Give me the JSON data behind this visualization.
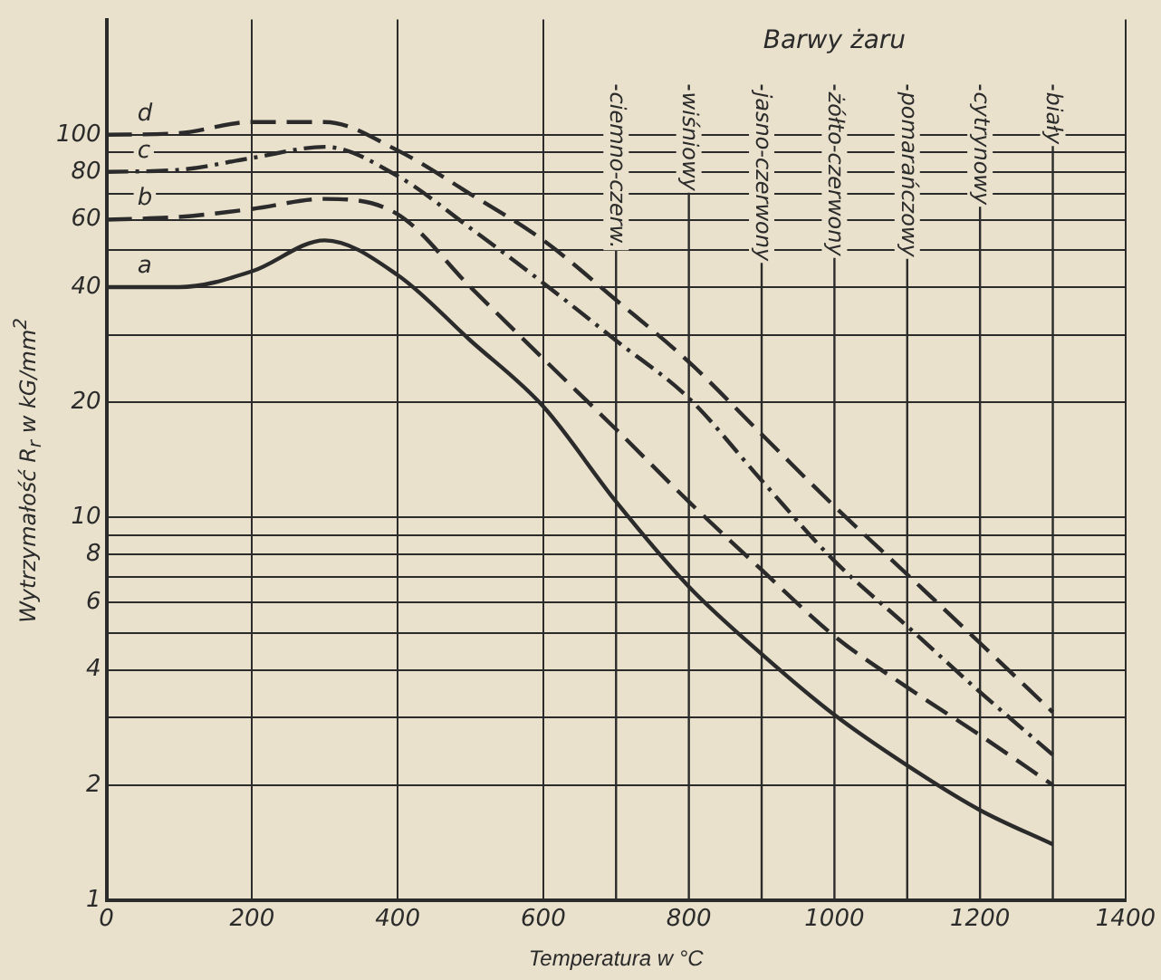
{
  "chart_data": {
    "type": "line",
    "xlabel": "Temperatura w °C",
    "ylabel": "Wytrzymałość R$_{r}$ w kG/mm$^{2}$",
    "x": [
      0,
      100,
      200,
      300,
      400,
      500,
      600,
      700,
      800,
      900,
      1000,
      1100,
      1200,
      1300
    ],
    "series": [
      {
        "name": "a",
        "color": "#2b2b2b",
        "line_style": "solid",
        "values": [
          40,
          40,
          44,
          53,
          43,
          29,
          19.5,
          11,
          6.6,
          4.4,
          3.05,
          2.25,
          1.72,
          1.4
        ]
      },
      {
        "name": "b",
        "color": "#2b2b2b",
        "line_style": "dashed",
        "values": [
          60,
          61,
          64,
          68,
          62,
          40,
          26,
          17,
          11,
          7.3,
          4.9,
          3.6,
          2.7,
          2.0
        ]
      },
      {
        "name": "c",
        "color": "#2b2b2b",
        "line_style": "dashdot",
        "values": [
          80,
          81,
          87,
          93,
          78,
          57,
          41,
          29,
          20.5,
          12.5,
          7.7,
          5.2,
          3.5,
          2.4
        ]
      },
      {
        "name": "d",
        "color": "#2b2b2b",
        "line_style": "dashed",
        "values": [
          100,
          101,
          108,
          108,
          91,
          70,
          53,
          37,
          25.5,
          16.5,
          10.7,
          7.1,
          4.7,
          3.1
        ]
      }
    ],
    "xlim": [
      0,
      1400
    ],
    "xticks": [
      0,
      200,
      400,
      600,
      800,
      1000,
      1200,
      1400
    ],
    "ylim": [
      1,
      200
    ],
    "yticks": [
      1,
      2,
      {
        "value": 3,
        "label": null
      },
      4,
      {
        "value": 5,
        "label": null
      },
      6,
      {
        "value": 7,
        "label": null
      },
      8,
      {
        "value": 9,
        "label": null
      },
      10,
      20,
      {
        "value": 30,
        "label": null
      },
      40,
      {
        "value": 50,
        "label": null
      },
      60,
      {
        "value": 70,
        "label": null
      },
      80,
      {
        "value": 90,
        "label": null
      },
      100
    ],
    "log": "y",
    "grid": true,
    "legend": false,
    "marker": "none",
    "ref_lines": [
      {
        "axis": "x",
        "value": 700,
        "label": "ciemno-czerw."
      },
      {
        "axis": "x",
        "value": 800,
        "label": "wiśniowy"
      },
      {
        "axis": "x",
        "value": 900,
        "label": "jasno-czerwony"
      },
      {
        "axis": "x",
        "value": 1000,
        "label": "żółto-czerwony"
      },
      {
        "axis": "x",
        "value": 1100,
        "label": "pomarańczowy"
      },
      {
        "axis": "x",
        "value": 1200,
        "label": "cytrynowy"
      },
      {
        "axis": "x",
        "value": 1300,
        "label": "biały"
      }
    ],
    "annotations": [
      "Barwy żaru"
    ]
  }
}
